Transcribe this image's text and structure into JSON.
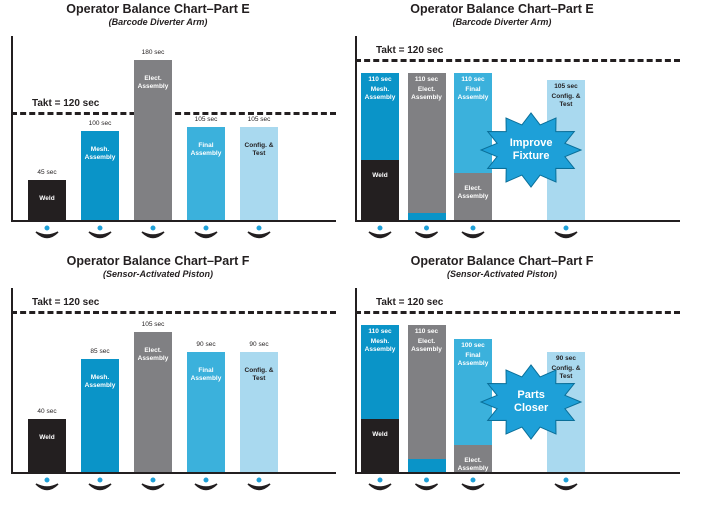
{
  "chart_data": [
    {
      "type": "stacked_bar",
      "title": "Operator Balance Chart–Part E",
      "subtitle": "(Barcode Diverter Arm)",
      "takt": {
        "value": 120,
        "label": "Takt = 120 sec"
      },
      "total_label_position": "above",
      "annotation": null,
      "bars": [
        {
          "total": {
            "value": 45,
            "label": "45 sec"
          },
          "segments": [
            {
              "name": "Weld",
              "value": 45,
              "color": "#231f20"
            }
          ]
        },
        {
          "total": {
            "value": 100,
            "label": "100 sec"
          },
          "segments": [
            {
              "name": "Mesh. Assembly",
              "value": 100,
              "color": "#0a94c8"
            }
          ]
        },
        {
          "total": {
            "value": 180,
            "label": "180 sec"
          },
          "segments": [
            {
              "name": "Elect. Assembly",
              "value": 180,
              "color": "#808083"
            }
          ]
        },
        {
          "total": {
            "value": 105,
            "label": "105 sec"
          },
          "segments": [
            {
              "name": "Final Assembly",
              "value": 105,
              "color": "#3bb1dc"
            }
          ]
        },
        {
          "total": {
            "value": 105,
            "label": "105 sec"
          },
          "segments": [
            {
              "name": "Config. & Test",
              "value": 105,
              "color": "#a9d9ef"
            }
          ]
        }
      ]
    },
    {
      "type": "stacked_bar",
      "title": "Operator Balance Chart–Part E",
      "subtitle": "(Barcode Diverter Arm)",
      "takt": {
        "value": 120,
        "label": "Takt = 120 sec"
      },
      "total_label_position": "inside",
      "annotation": "Improve Fixture",
      "bars": [
        {
          "total": {
            "value": 110,
            "label": "110 sec"
          },
          "segments": [
            {
              "name": "Weld",
              "value": 45,
              "color": "#231f20"
            },
            {
              "name": "Mesh. Assembly",
              "value": 65,
              "color": "#0a94c8"
            }
          ]
        },
        {
          "total": {
            "value": 110,
            "label": "110 sec"
          },
          "segments": [
            {
              "name": null,
              "value": 5,
              "color": "#0a94c8"
            },
            {
              "name": "Elect. Assembly",
              "value": 105,
              "color": "#808083"
            }
          ]
        },
        {
          "total": {
            "value": 110,
            "label": "110 sec"
          },
          "segments": [
            {
              "name": "Elect. Assembly",
              "value": 35,
              "color": "#808083"
            },
            {
              "name": "Final Assembly",
              "value": 75,
              "color": "#3bb1dc"
            }
          ]
        },
        null,
        {
          "total": {
            "value": 105,
            "label": "105 sec"
          },
          "segments": [
            {
              "name": "Config. & Test",
              "value": 105,
              "color": "#a9d9ef"
            }
          ]
        }
      ]
    },
    {
      "type": "stacked_bar",
      "title": "Operator Balance Chart–Part F",
      "subtitle": "(Sensor-Activated Piston)",
      "takt": {
        "value": 120,
        "label": "Takt = 120 sec"
      },
      "total_label_position": "above",
      "annotation": null,
      "bars": [
        {
          "total": {
            "value": 40,
            "label": "40 sec"
          },
          "segments": [
            {
              "name": "Weld",
              "value": 40,
              "color": "#231f20"
            }
          ]
        },
        {
          "total": {
            "value": 85,
            "label": "85 sec"
          },
          "segments": [
            {
              "name": "Mesh. Assembly",
              "value": 85,
              "color": "#0a94c8"
            }
          ]
        },
        {
          "total": {
            "value": 105,
            "label": "105 sec"
          },
          "segments": [
            {
              "name": "Elect. Assembly",
              "value": 105,
              "color": "#808083"
            }
          ]
        },
        {
          "total": {
            "value": 90,
            "label": "90 sec"
          },
          "segments": [
            {
              "name": "Final Assembly",
              "value": 90,
              "color": "#3bb1dc"
            }
          ]
        },
        {
          "total": {
            "value": 90,
            "label": "90 sec"
          },
          "segments": [
            {
              "name": "Config. & Test",
              "value": 90,
              "color": "#a9d9ef"
            }
          ]
        }
      ]
    },
    {
      "type": "stacked_bar",
      "title": "Operator Balance Chart–Part F",
      "subtitle": "(Sensor-Activated Piston)",
      "takt": {
        "value": 120,
        "label": "Takt = 120 sec"
      },
      "total_label_position": "inside",
      "annotation": "Parts Closer",
      "bars": [
        {
          "total": {
            "value": 110,
            "label": "110 sec"
          },
          "segments": [
            {
              "name": "Weld",
              "value": 40,
              "color": "#231f20"
            },
            {
              "name": "Mesh. Assembly",
              "value": 70,
              "color": "#0a94c8"
            }
          ]
        },
        {
          "total": {
            "value": 110,
            "label": "110 sec"
          },
          "segments": [
            {
              "name": null,
              "value": 10,
              "color": "#0a94c8"
            },
            {
              "name": "Elect. Assembly",
              "value": 100,
              "color": "#808083"
            }
          ]
        },
        {
          "total": {
            "value": 100,
            "label": "100 sec"
          },
          "segments": [
            {
              "name": "Elect. Assembly",
              "value": 20,
              "color": "#808083"
            },
            {
              "name": "Final Assembly",
              "value": 80,
              "color": "#3bb1dc"
            }
          ]
        },
        null,
        {
          "total": {
            "value": 90,
            "label": "90 sec"
          },
          "segments": [
            {
              "name": "Config. & Test",
              "value": 90,
              "color": "#a9d9ef"
            }
          ]
        }
      ]
    }
  ]
}
